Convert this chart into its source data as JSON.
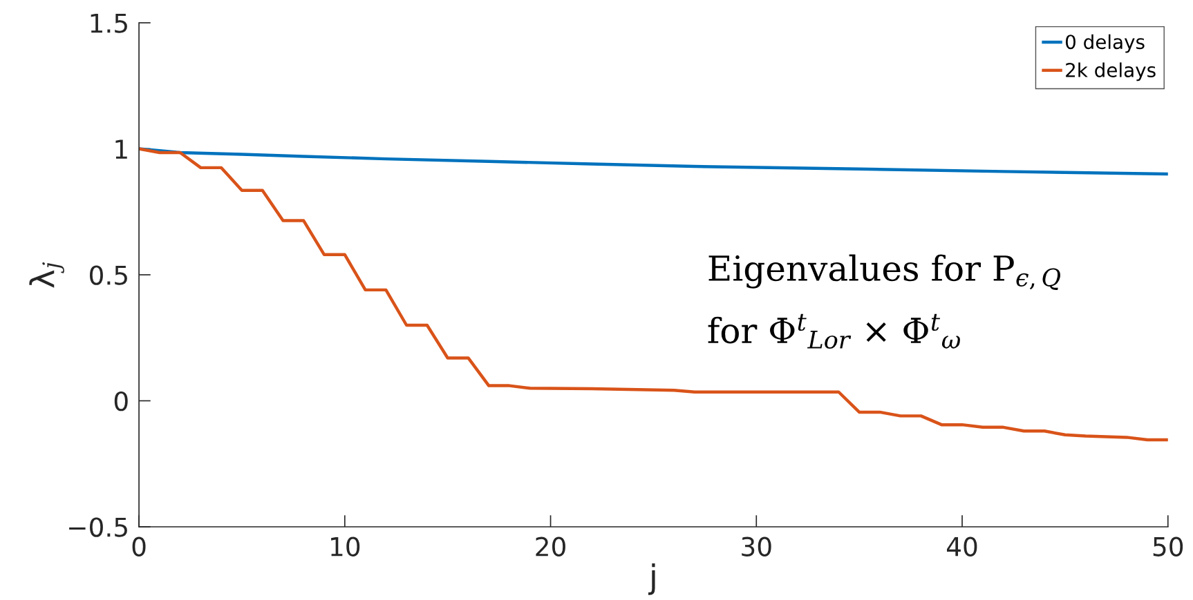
{
  "chart_data": {
    "type": "line",
    "xlabel": "j",
    "ylabel": "λ$_{j}$",
    "xlim": [
      0,
      50
    ],
    "xticks": [
      0,
      10,
      20,
      30,
      40,
      50
    ],
    "ylim": [
      -0.5,
      1.5
    ],
    "yticks": [
      {
        "value": -0.5,
        "label": "−0.5"
      },
      0,
      0.5,
      1,
      1.5
    ],
    "grid": false,
    "legend": "top right",
    "line_style": "solid",
    "marker": "none",
    "annotations": [
      "Eigenvalues for P$_{ϵ,Q}$",
      "for Φ$^{t}$$_{Lor}$ × Φ$^{t}$$_{ω}$"
    ],
    "series": [
      {
        "name": "0 delays",
        "color": "#0072bd",
        "x": [
          0,
          2,
          5,
          8,
          12,
          17,
          22,
          27,
          35,
          42,
          50
        ],
        "values": [
          1,
          0.985,
          0.978,
          0.97,
          0.96,
          0.95,
          0.94,
          0.93,
          0.92,
          0.91,
          0.9
        ]
      },
      {
        "name": "2k delays",
        "color": "#d95319",
        "x": [
          0,
          1,
          2,
          3,
          4,
          5,
          6,
          7,
          8,
          9,
          10,
          11,
          12,
          13,
          14,
          15,
          16,
          17,
          18,
          19,
          22,
          26,
          27,
          34,
          35,
          36,
          37,
          38,
          39,
          40,
          41,
          42,
          43,
          44,
          45,
          46,
          48,
          49,
          50
        ],
        "values": [
          1,
          0.985,
          0.985,
          0.925,
          0.925,
          0.835,
          0.835,
          0.715,
          0.715,
          0.58,
          0.58,
          0.44,
          0.44,
          0.3,
          0.3,
          0.17,
          0.17,
          0.06,
          0.06,
          0.05,
          0.048,
          0.042,
          0.035,
          0.035,
          -0.045,
          -0.045,
          -0.06,
          -0.06,
          -0.095,
          -0.095,
          -0.105,
          -0.105,
          -0.12,
          -0.12,
          -0.135,
          -0.14,
          -0.145,
          -0.155,
          -0.155
        ]
      }
    ]
  }
}
